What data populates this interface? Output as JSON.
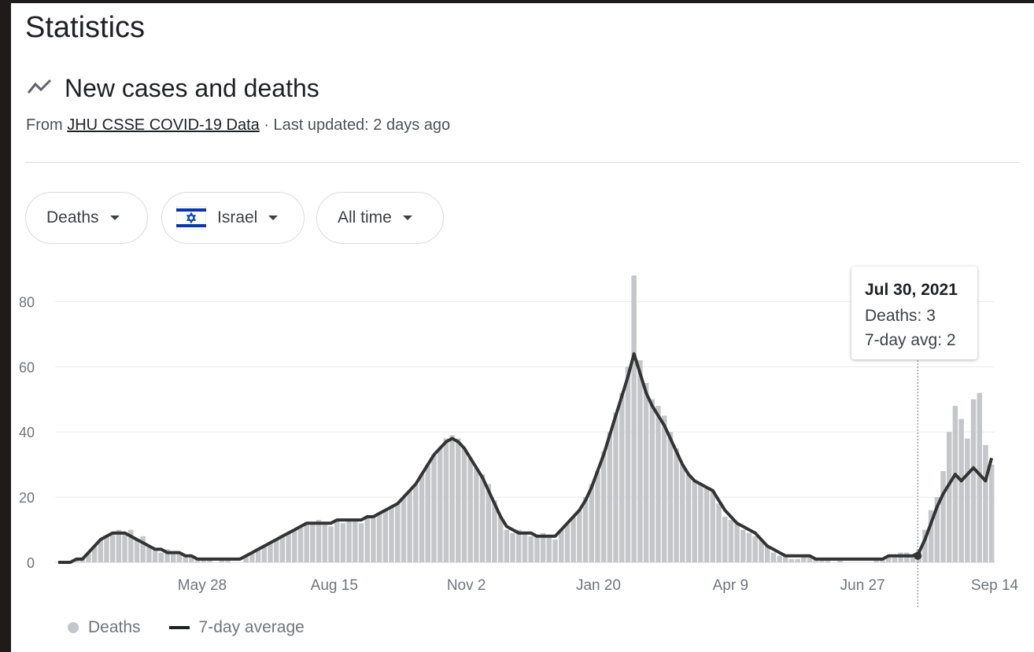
{
  "page": {
    "title": "Statistics"
  },
  "header": {
    "heading": "New cases and deaths",
    "source_prefix": "From",
    "source_link": "JHU CSSE COVID-19 Data",
    "updated": "· Last updated: 2 days ago"
  },
  "filters": {
    "metric": "Deaths",
    "location": "Israel",
    "range": "All time"
  },
  "tooltip": {
    "date": "Jul 30, 2021",
    "deaths": "Deaths: 3",
    "avg": "7-day avg: 2"
  },
  "legend": {
    "bars": "Deaths",
    "line": "7-day average"
  },
  "colors": {
    "bars": "#c4c6c9",
    "line": "#333333",
    "grid": "#ebebeb"
  },
  "chart_data": {
    "type": "bar",
    "x_range": [
      "2020-03-01",
      "2021-09-14"
    ],
    "x_ticks": [
      {
        "date": "2020-05-28",
        "label": "May 28"
      },
      {
        "date": "2020-08-15",
        "label": "Aug 15"
      },
      {
        "date": "2020-11-02",
        "label": "Nov 2"
      },
      {
        "date": "2021-01-20",
        "label": "Jan 20"
      },
      {
        "date": "2021-04-09",
        "label": "Apr 9"
      },
      {
        "date": "2021-06-27",
        "label": "Jun 27"
      },
      {
        "date": "2021-09-14",
        "label": "Sep 14"
      }
    ],
    "y_ticks": [
      0,
      20,
      40,
      60,
      80
    ],
    "ylim": [
      0,
      90
    ],
    "series": [
      {
        "name": "Deaths",
        "kind": "bar",
        "daily": [
          0,
          0,
          0,
          1,
          1,
          3,
          5,
          7,
          8,
          9,
          10,
          9,
          10,
          7,
          8,
          5,
          4,
          3,
          4,
          3,
          3,
          2,
          2,
          1,
          1,
          1,
          0,
          1,
          1,
          0,
          0,
          2,
          3,
          4,
          5,
          6,
          7,
          8,
          9,
          10,
          11,
          12,
          12,
          13,
          12,
          11,
          13,
          12,
          13,
          13,
          12,
          14,
          14,
          15,
          16,
          17,
          18,
          20,
          22,
          24,
          27,
          30,
          33,
          35,
          38,
          39,
          38,
          35,
          32,
          29,
          27,
          24,
          19,
          14,
          10,
          9,
          10,
          9,
          8,
          8,
          9,
          8,
          7,
          10,
          12,
          14,
          16,
          20,
          24,
          28,
          34,
          40,
          46,
          52,
          60,
          88,
          62,
          55,
          50,
          48,
          45,
          40,
          35,
          30,
          27,
          25,
          24,
          23,
          22,
          18,
          14,
          13,
          12,
          10,
          9,
          8,
          7,
          5,
          3,
          2,
          2,
          1,
          1,
          2,
          2,
          1,
          1,
          1,
          0,
          1,
          0,
          0,
          0,
          0,
          0,
          1,
          1,
          2,
          2,
          3,
          3,
          2,
          4,
          10,
          16,
          20,
          28,
          40,
          48,
          44,
          38,
          50,
          52,
          36,
          30
        ]
      },
      {
        "name": "7-day average",
        "kind": "line",
        "values": [
          0,
          0,
          0,
          1,
          1,
          3,
          5,
          7,
          8,
          9,
          9,
          9,
          8,
          7,
          6,
          5,
          4,
          4,
          3,
          3,
          3,
          2,
          2,
          1,
          1,
          1,
          1,
          1,
          1,
          1,
          1,
          2,
          3,
          4,
          5,
          6,
          7,
          8,
          9,
          10,
          11,
          12,
          12,
          12,
          12,
          12,
          13,
          13,
          13,
          13,
          13,
          14,
          14,
          15,
          16,
          17,
          18,
          20,
          22,
          24,
          27,
          30,
          33,
          35,
          37,
          38,
          37,
          35,
          32,
          29,
          26,
          22,
          18,
          14,
          11,
          10,
          9,
          9,
          9,
          8,
          8,
          8,
          8,
          10,
          12,
          14,
          16,
          19,
          23,
          28,
          33,
          39,
          45,
          51,
          57,
          64,
          58,
          52,
          48,
          45,
          42,
          38,
          34,
          30,
          27,
          25,
          24,
          23,
          22,
          19,
          16,
          14,
          12,
          11,
          10,
          9,
          7,
          5,
          4,
          3,
          2,
          2,
          2,
          2,
          2,
          1,
          1,
          1,
          1,
          1,
          1,
          1,
          1,
          1,
          1,
          1,
          1,
          2,
          2,
          2,
          2,
          2,
          3,
          7,
          12,
          17,
          21,
          24,
          27,
          25,
          27,
          29,
          27,
          25,
          32
        ]
      }
    ]
  }
}
